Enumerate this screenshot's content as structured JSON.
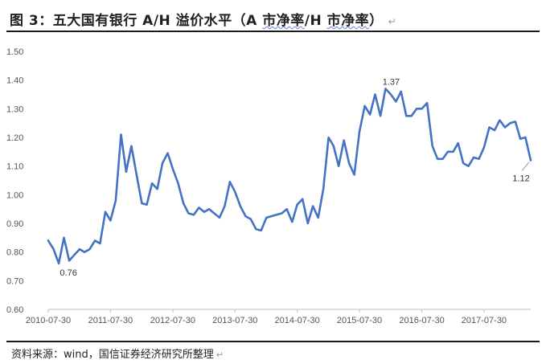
{
  "title": {
    "prefix": "图 3：五大国有银行 A/H 溢价水平（A ",
    "wavy1": "市净率",
    "mid": "/H ",
    "wavy2": "市净率",
    "suffix": "）",
    "para_mark": "↵"
  },
  "source": {
    "text": "资料来源：wind，国信证券经济研究所整理",
    "para_mark": "↵"
  },
  "chart_data": {
    "type": "line",
    "title": "",
    "xlabel": "",
    "ylabel": "",
    "ylim": [
      0.6,
      1.5
    ],
    "yticks": [
      "0.60",
      "0.70",
      "0.80",
      "0.90",
      "1.00",
      "1.10",
      "1.20",
      "1.30",
      "1.40",
      "1.50"
    ],
    "xlim": [
      "2010-07-30",
      "2018-04-30"
    ],
    "xticks": [
      {
        "date": "2010-07-30",
        "label": "2010-07-30"
      },
      {
        "date": "2011-07-30",
        "label": "2011-07-30"
      },
      {
        "date": "2012-07-30",
        "label": "2012-07-30"
      },
      {
        "date": "2013-07-30",
        "label": "2013-07-30"
      },
      {
        "date": "2014-07-30",
        "label": "2014-07-30"
      },
      {
        "date": "2015-07-30",
        "label": "2015-07-30"
      },
      {
        "date": "2016-07-30",
        "label": "2016-07-30"
      },
      {
        "date": "2017-07-30",
        "label": "2017-07-30"
      }
    ],
    "grid": false,
    "legend": "none",
    "color": "#4472c4",
    "series": [
      {
        "points": [
          [
            "2010-07-30",
            0.84
          ],
          [
            "2010-08-30",
            0.81
          ],
          [
            "2010-09-30",
            0.76
          ],
          [
            "2010-10-30",
            0.85
          ],
          [
            "2010-11-30",
            0.77
          ],
          [
            "2010-12-30",
            0.79
          ],
          [
            "2011-01-30",
            0.81
          ],
          [
            "2011-02-28",
            0.8
          ],
          [
            "2011-03-30",
            0.81
          ],
          [
            "2011-04-30",
            0.84
          ],
          [
            "2011-05-30",
            0.83
          ],
          [
            "2011-06-30",
            0.94
          ],
          [
            "2011-07-30",
            0.91
          ],
          [
            "2011-08-30",
            0.98
          ],
          [
            "2011-09-30",
            1.21
          ],
          [
            "2011-10-30",
            1.08
          ],
          [
            "2011-11-30",
            1.17
          ],
          [
            "2011-12-30",
            1.07
          ],
          [
            "2012-01-30",
            0.97
          ],
          [
            "2012-02-28",
            0.965
          ],
          [
            "2012-03-30",
            1.04
          ],
          [
            "2012-04-30",
            1.02
          ],
          [
            "2012-05-30",
            1.11
          ],
          [
            "2012-06-30",
            1.145
          ],
          [
            "2012-07-30",
            1.09
          ],
          [
            "2012-08-30",
            1.04
          ],
          [
            "2012-09-30",
            0.97
          ],
          [
            "2012-10-30",
            0.935
          ],
          [
            "2012-11-30",
            0.93
          ],
          [
            "2012-12-30",
            0.955
          ],
          [
            "2013-01-30",
            0.94
          ],
          [
            "2013-02-28",
            0.95
          ],
          [
            "2013-03-30",
            0.935
          ],
          [
            "2013-04-30",
            0.92
          ],
          [
            "2013-05-30",
            0.96
          ],
          [
            "2013-06-30",
            1.045
          ],
          [
            "2013-07-30",
            1.01
          ],
          [
            "2013-08-30",
            0.96
          ],
          [
            "2013-09-30",
            0.925
          ],
          [
            "2013-10-30",
            0.915
          ],
          [
            "2013-11-30",
            0.88
          ],
          [
            "2013-12-30",
            0.875
          ],
          [
            "2014-01-30",
            0.92
          ],
          [
            "2014-02-28",
            0.925
          ],
          [
            "2014-03-30",
            0.93
          ],
          [
            "2014-04-30",
            0.935
          ],
          [
            "2014-05-30",
            0.95
          ],
          [
            "2014-06-30",
            0.905
          ],
          [
            "2014-07-30",
            0.965
          ],
          [
            "2014-08-30",
            0.985
          ],
          [
            "2014-09-30",
            0.9
          ],
          [
            "2014-10-30",
            0.96
          ],
          [
            "2014-11-30",
            0.92
          ],
          [
            "2014-12-30",
            1.02
          ],
          [
            "2015-01-30",
            1.2
          ],
          [
            "2015-02-28",
            1.17
          ],
          [
            "2015-03-30",
            1.1
          ],
          [
            "2015-04-30",
            1.19
          ],
          [
            "2015-05-30",
            1.11
          ],
          [
            "2015-06-30",
            1.07
          ],
          [
            "2015-07-30",
            1.22
          ],
          [
            "2015-08-30",
            1.31
          ],
          [
            "2015-09-30",
            1.28
          ],
          [
            "2015-10-30",
            1.35
          ],
          [
            "2015-11-30",
            1.275
          ],
          [
            "2015-12-30",
            1.37
          ],
          [
            "2016-01-30",
            1.35
          ],
          [
            "2016-02-29",
            1.325
          ],
          [
            "2016-03-30",
            1.36
          ],
          [
            "2016-04-30",
            1.275
          ],
          [
            "2016-05-30",
            1.275
          ],
          [
            "2016-06-30",
            1.3
          ],
          [
            "2016-07-30",
            1.3
          ],
          [
            "2016-08-30",
            1.32
          ],
          [
            "2016-09-30",
            1.17
          ],
          [
            "2016-10-30",
            1.125
          ],
          [
            "2016-11-30",
            1.125
          ],
          [
            "2016-12-30",
            1.15
          ],
          [
            "2017-01-30",
            1.15
          ],
          [
            "2017-02-28",
            1.18
          ],
          [
            "2017-03-30",
            1.11
          ],
          [
            "2017-04-30",
            1.1
          ],
          [
            "2017-05-30",
            1.13
          ],
          [
            "2017-06-30",
            1.125
          ],
          [
            "2017-07-30",
            1.165
          ],
          [
            "2017-08-30",
            1.235
          ],
          [
            "2017-09-30",
            1.225
          ],
          [
            "2017-10-30",
            1.26
          ],
          [
            "2017-11-30",
            1.235
          ],
          [
            "2017-12-30",
            1.25
          ],
          [
            "2018-01-30",
            1.255
          ],
          [
            "2018-02-28",
            1.195
          ],
          [
            "2018-03-30",
            1.2
          ],
          [
            "2018-04-30",
            1.12
          ]
        ]
      }
    ],
    "annotations": [
      {
        "label": "0.76",
        "date": "2010-09-30",
        "value": 0.76
      },
      {
        "label": "1.37",
        "date": "2015-12-30",
        "value": 1.37
      },
      {
        "label": "1.12",
        "date": "2018-04-30",
        "value": 1.12
      }
    ]
  }
}
